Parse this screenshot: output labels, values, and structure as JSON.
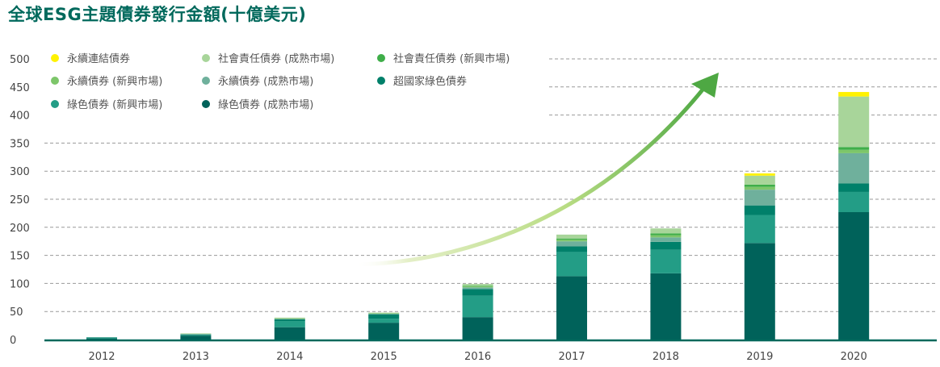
{
  "chart_data": {
    "type": "bar",
    "stacked": true,
    "title": "全球ESG主題債券發行金額(十億美元)",
    "xlabel": "",
    "ylabel": "",
    "categories": [
      "2012",
      "2013",
      "2014",
      "2015",
      "2016",
      "2017",
      "2018",
      "2019",
      "2020"
    ],
    "ylim": [
      0,
      500
    ],
    "yticks": [
      0,
      50,
      100,
      150,
      200,
      250,
      300,
      350,
      400,
      450,
      500
    ],
    "grid": "horizontal-dashed",
    "legend_position": "top-left",
    "annotation": "upward-trend-arrow",
    "series": [
      {
        "name": "綠色債券 (成熟市場)",
        "color": "#00625a",
        "values": [
          2,
          7,
          22,
          30,
          40,
          113,
          118,
          172,
          227
        ]
      },
      {
        "name": "綠色債券 (新興市場)",
        "color": "#239d86",
        "values": [
          1,
          1,
          11,
          7,
          38,
          43,
          42,
          50,
          36
        ]
      },
      {
        "name": "超國家綠色債券",
        "color": "#00806a",
        "values": [
          1,
          1,
          3,
          8,
          12,
          10,
          14,
          17,
          15
        ]
      },
      {
        "name": "永續債券 (成熟市場)",
        "color": "#6fb09c",
        "values": [
          0,
          1,
          1,
          1,
          3,
          9,
          8,
          28,
          54
        ]
      },
      {
        "name": "永續債券 (新興市場)",
        "color": "#7dc66a",
        "values": [
          0,
          0,
          1,
          1,
          2,
          3,
          4,
          5,
          6
        ]
      },
      {
        "name": "社會責任債券 (新興市場)",
        "color": "#3fae49",
        "values": [
          0,
          0,
          0,
          0,
          1,
          2,
          3,
          4,
          5
        ]
      },
      {
        "name": "社會責任債券 (成熟市場)",
        "color": "#a8d59a",
        "values": [
          0,
          1,
          1,
          1,
          3,
          7,
          9,
          16,
          90
        ]
      },
      {
        "name": "永續連結債券",
        "color": "#fff200",
        "values": [
          0,
          0,
          0,
          0,
          0,
          0,
          0,
          4,
          8
        ]
      }
    ],
    "legend_order": [
      "永續連結債券",
      "社會責任債券 (成熟市場)",
      "社會責任債券 (新興市場)",
      "永續債券 (新興市場)",
      "永續債券 (成熟市場)",
      "超國家綠色債券",
      "綠色債券 (新興市場)",
      "綠色債券 (成熟市場)"
    ]
  }
}
